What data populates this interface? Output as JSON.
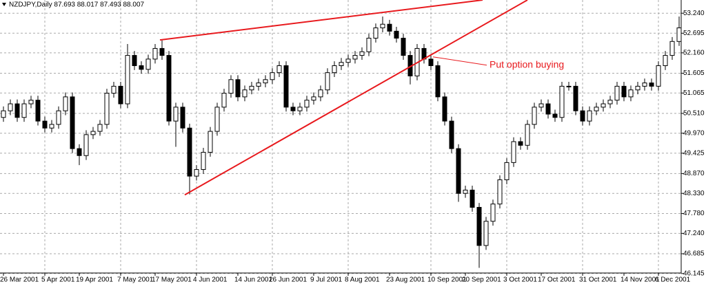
{
  "chart_data": {
    "type": "candlestick",
    "title": "NZDJPY,Daily 87.693 88.017 87.493 88.007",
    "categories": [
      "26 Mar 2001",
      null,
      null,
      null,
      null,
      null,
      "5 Apr 2001",
      null,
      null,
      null,
      null,
      "19 Apr 2001",
      null,
      null,
      null,
      null,
      null,
      "7 May 2001",
      null,
      null,
      null,
      null,
      "17 May 2001",
      null,
      null,
      null,
      null,
      null,
      "4 Jun 2001",
      null,
      null,
      null,
      null,
      null,
      "14 Jun 2001",
      null,
      null,
      null,
      null,
      "26 Jun 2001",
      null,
      null,
      null,
      null,
      null,
      "9 Jul 2001",
      null,
      null,
      null,
      null,
      "8 Aug 2001",
      null,
      null,
      null,
      null,
      null,
      "23 Aug 2001",
      null,
      null,
      null,
      null,
      null,
      "10 Sep 2001",
      null,
      null,
      null,
      null,
      "20 Sep 2001",
      null,
      null,
      null,
      null,
      null,
      "3 Oct 2001",
      null,
      null,
      null,
      null,
      "17 Oct 2001",
      null,
      null,
      null,
      null,
      null,
      "31 Oct 2001",
      null,
      null,
      null,
      null,
      null,
      "14 Nov 2001",
      null,
      null,
      null,
      null,
      "6 Dec 2001",
      null,
      null,
      null
    ],
    "open": [
      50.4,
      50.58,
      50.77,
      50.4,
      50.77,
      50.87,
      50.3,
      50.11,
      50.21,
      50.58,
      50.96,
      49.55,
      49.36,
      49.93,
      50.02,
      50.21,
      51.06,
      51.25,
      50.77,
      52.09,
      51.81,
      51.71,
      51.99,
      52.28,
      52.09,
      50.3,
      50.68,
      50.11,
      48.8,
      48.98,
      49.45,
      50.02,
      50.68,
      51.06,
      51.43,
      50.96,
      51.15,
      51.25,
      51.34,
      51.43,
      51.62,
      51.81,
      50.68,
      50.58,
      50.68,
      50.87,
      50.96,
      51.15,
      51.62,
      51.81,
      51.9,
      51.99,
      52.09,
      52.19,
      52.56,
      52.84,
      52.94,
      52.75,
      52.56,
      52.09,
      51.53,
      52.28,
      51.99,
      51.81,
      50.96,
      50.3,
      49.55,
      48.33,
      48.42,
      47.95,
      46.91,
      47.57,
      48.04,
      48.7,
      49.17,
      49.74,
      49.64,
      50.21,
      50.68,
      50.77,
      50.49,
      50.4,
      51.25,
      51.25,
      50.58,
      50.3,
      50.58,
      50.68,
      50.77,
      50.87,
      51.25,
      50.96,
      51.15,
      51.25,
      51.34,
      51.25,
      51.81,
      52.09,
      52.47
    ],
    "high": [
      50.7,
      50.89,
      50.89,
      50.89,
      50.99,
      50.99,
      50.42,
      50.33,
      50.7,
      51.08,
      51.08,
      49.67,
      50.05,
      50.14,
      50.33,
      51.18,
      51.37,
      51.37,
      52.4,
      52.21,
      51.93,
      52.11,
      52.4,
      52.5,
      52.21,
      50.8,
      50.8,
      50.23,
      49.1,
      49.57,
      50.14,
      50.8,
      51.18,
      51.55,
      51.55,
      51.27,
      51.37,
      51.46,
      51.55,
      51.74,
      51.93,
      51.93,
      50.8,
      50.8,
      50.99,
      51.08,
      51.27,
      51.74,
      51.93,
      52.02,
      52.11,
      52.21,
      52.31,
      52.68,
      52.96,
      53.15,
      53.06,
      52.87,
      52.68,
      52.21,
      52.4,
      52.4,
      52.11,
      51.93,
      51.08,
      50.42,
      49.67,
      48.54,
      48.54,
      48.07,
      47.69,
      48.16,
      48.82,
      49.29,
      49.86,
      49.86,
      50.33,
      50.8,
      50.89,
      50.89,
      50.61,
      51.37,
      51.37,
      51.37,
      50.7,
      50.7,
      50.8,
      50.89,
      50.99,
      51.37,
      51.37,
      51.27,
      51.37,
      51.46,
      51.46,
      51.93,
      52.21,
      52.59,
      53.15
    ],
    "low": [
      50.28,
      50.46,
      50.28,
      50.28,
      50.65,
      50.18,
      49.99,
      49.99,
      50.09,
      50.46,
      49.43,
      49.1,
      49.24,
      49.81,
      49.9,
      50.09,
      50.94,
      50.65,
      50.65,
      51.69,
      51.59,
      51.59,
      51.87,
      51.97,
      50.18,
      49.6,
      49.99,
      48.3,
      48.68,
      48.86,
      49.33,
      49.9,
      50.56,
      50.94,
      50.84,
      50.84,
      51.03,
      51.13,
      51.22,
      51.31,
      51.5,
      50.56,
      50.46,
      50.46,
      50.56,
      50.75,
      50.84,
      51.03,
      51.5,
      51.69,
      51.78,
      51.87,
      51.97,
      52.07,
      52.44,
      52.72,
      52.63,
      52.44,
      51.97,
      51.3,
      51.41,
      51.87,
      51.69,
      50.84,
      50.18,
      49.43,
      48.1,
      48.21,
      47.83,
      46.3,
      46.79,
      47.45,
      47.92,
      48.58,
      49.05,
      49.52,
      49.52,
      50.09,
      50.56,
      50.37,
      50.28,
      50.28,
      51.13,
      50.46,
      50.18,
      50.18,
      50.46,
      50.56,
      50.65,
      50.75,
      50.84,
      50.84,
      51.03,
      51.13,
      51.13,
      51.13,
      51.69,
      51.97,
      52.35
    ],
    "close": [
      50.58,
      50.77,
      50.4,
      50.77,
      50.87,
      50.3,
      50.11,
      50.21,
      50.58,
      50.96,
      49.55,
      49.36,
      49.93,
      50.02,
      50.21,
      51.06,
      51.25,
      50.77,
      52.09,
      51.81,
      51.71,
      51.99,
      52.28,
      52.09,
      50.3,
      50.68,
      50.11,
      48.8,
      48.98,
      49.45,
      50.02,
      50.68,
      51.06,
      51.43,
      50.96,
      51.15,
      51.25,
      51.34,
      51.43,
      51.62,
      51.81,
      50.68,
      50.58,
      50.68,
      50.87,
      50.96,
      51.15,
      51.62,
      51.81,
      51.9,
      51.99,
      52.09,
      52.19,
      52.56,
      52.84,
      52.94,
      52.75,
      52.56,
      52.09,
      51.53,
      52.28,
      51.99,
      51.81,
      50.96,
      50.3,
      49.55,
      48.33,
      48.42,
      47.95,
      46.91,
      47.57,
      48.04,
      48.7,
      49.17,
      49.74,
      49.64,
      50.21,
      50.68,
      50.77,
      50.49,
      50.4,
      51.25,
      51.25,
      50.58,
      50.3,
      50.58,
      50.68,
      50.77,
      50.87,
      51.25,
      50.96,
      51.15,
      51.25,
      51.34,
      51.25,
      51.81,
      52.09,
      52.47,
      52.84
    ],
    "up_color": "#ffffff",
    "down_color": "#000000",
    "ylim": [
      46.16,
      53.6
    ],
    "yticks": [
      {
        "value": 53.24,
        "label": "53.240"
      },
      {
        "value": 52.695,
        "label": "52.695"
      },
      {
        "value": 52.16,
        "label": "52.160"
      },
      {
        "value": 51.605,
        "label": "51.605"
      },
      {
        "value": 51.065,
        "label": "51.065"
      },
      {
        "value": 50.51,
        "label": "50.510"
      },
      {
        "value": 49.97,
        "label": "49.970"
      },
      {
        "value": 49.425,
        "label": "49.425"
      },
      {
        "value": 48.87,
        "label": "48.870"
      },
      {
        "value": 48.33,
        "label": "48.330"
      },
      {
        "value": 47.78,
        "label": "47.780"
      },
      {
        "value": 47.24,
        "label": "47.240"
      },
      {
        "value": 46.685,
        "label": "46.685"
      },
      {
        "value": 46.145,
        "label": "46.145"
      }
    ],
    "grid": true,
    "trendlines": [
      {
        "color": "#e8191d",
        "start": [
          22.7,
          52.51
        ],
        "end": [
          69.5,
          53.6
        ]
      },
      {
        "color": "#e8191d",
        "start": [
          26.3,
          48.29
        ],
        "end": [
          76.0,
          53.6
        ]
      }
    ],
    "annotation": {
      "text": "Put option buying",
      "color": "#e8191d",
      "point": [
        62.3,
        52.05
      ]
    }
  }
}
